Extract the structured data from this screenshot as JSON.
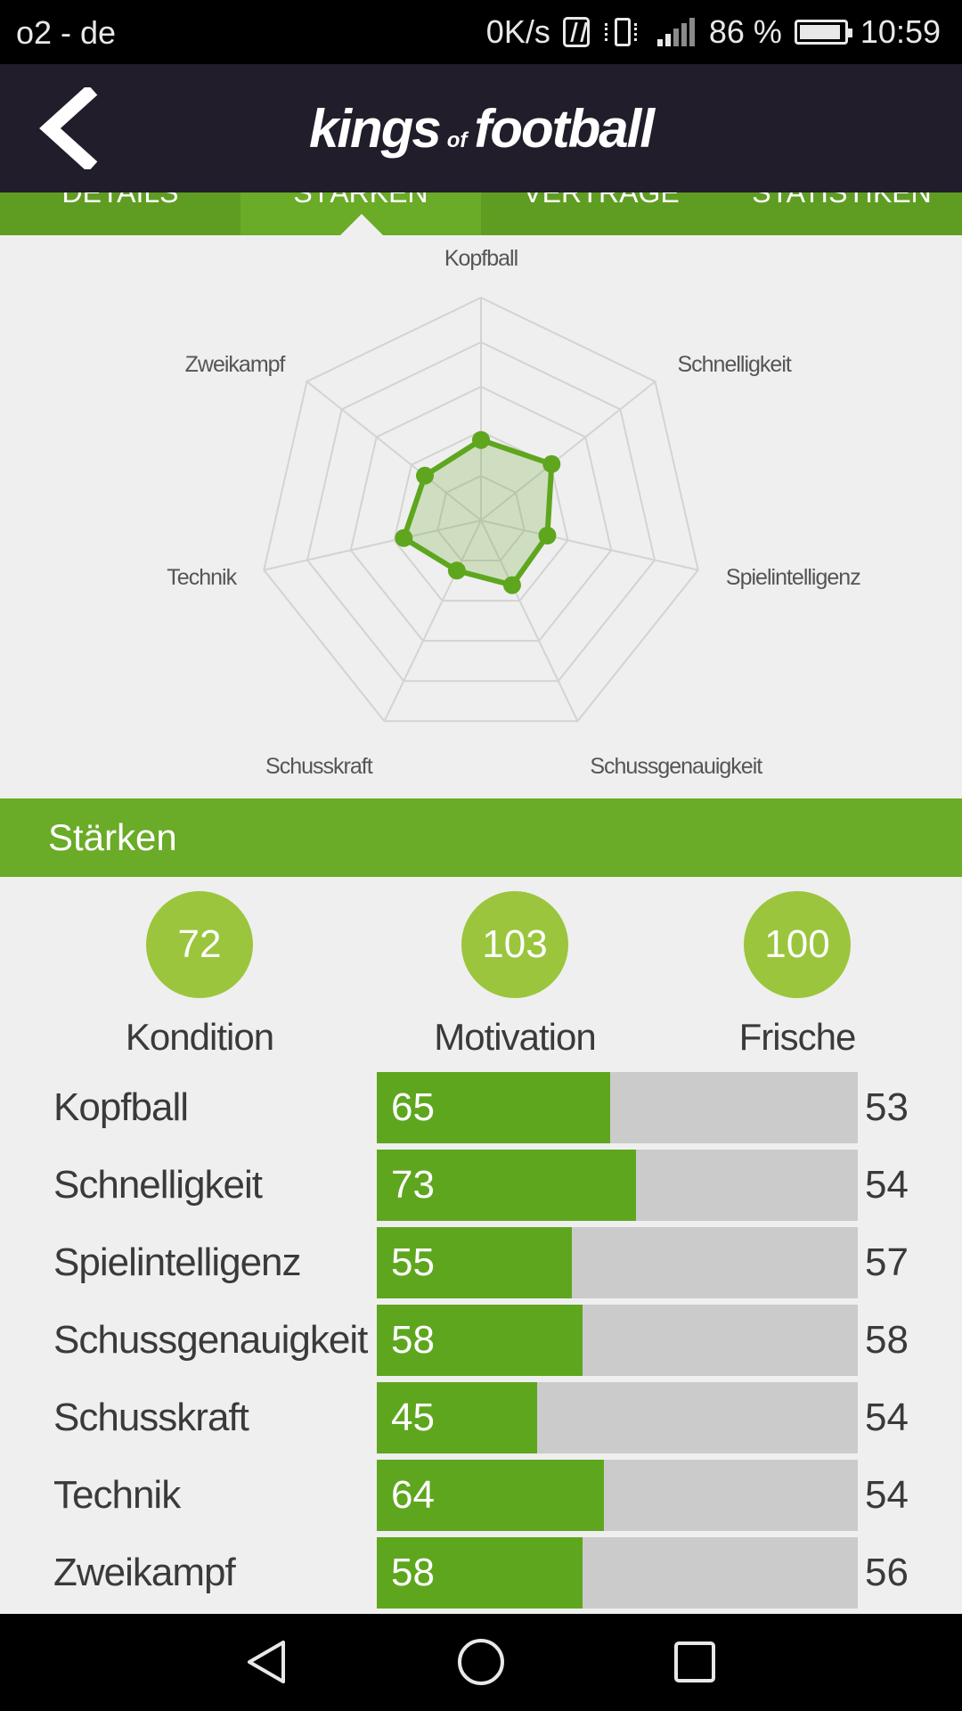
{
  "status_bar": {
    "carrier": "o2 - de",
    "speed": "0K/s",
    "battery": "86 %",
    "time": "10:59"
  },
  "app": {
    "logo_main_left": "kings",
    "logo_of": "of",
    "logo_main_right": "football"
  },
  "tabs": [
    {
      "label": "Details",
      "active": false
    },
    {
      "label": "Stärken",
      "active": true
    },
    {
      "label": "Verträge",
      "active": false
    },
    {
      "label": "Statistiken",
      "active": false
    }
  ],
  "chart_data": {
    "type": "radar",
    "axes": [
      "Kopfball",
      "Schnelligkeit",
      "Spielintelligenz",
      "Schussgenauigkeit",
      "Schusskraft",
      "Technik",
      "Zweikampf"
    ],
    "values": [
      65,
      73,
      55,
      58,
      45,
      64,
      58
    ],
    "range": [
      0,
      180
    ],
    "rings": 5,
    "color": "#5fa61f"
  },
  "section": {
    "title": "Stärken"
  },
  "summary": [
    {
      "value": "72",
      "label": "Kondition"
    },
    {
      "value": "103",
      "label": "Motivation"
    },
    {
      "value": "100",
      "label": "Frische"
    }
  ],
  "attributes": [
    {
      "label": "Kopfball",
      "value": 65,
      "compare": 53,
      "fill": 0.485
    },
    {
      "label": "Schnelligkeit",
      "value": 73,
      "compare": 54,
      "fill": 0.539
    },
    {
      "label": "Spielintelligenz",
      "value": 55,
      "compare": 57,
      "fill": 0.406
    },
    {
      "label": "Schussgenauigkeit",
      "value": 58,
      "compare": 58,
      "fill": 0.428
    },
    {
      "label": "Schusskraft",
      "value": 45,
      "compare": 54,
      "fill": 0.333
    },
    {
      "label": "Technik",
      "value": 64,
      "compare": 54,
      "fill": 0.472
    },
    {
      "label": "Zweikampf",
      "value": 58,
      "compare": 56,
      "fill": 0.428
    }
  ],
  "colors": {
    "header_bg": "#221d2a",
    "accent_green": "#6aab27",
    "bar_green": "#5fa61f",
    "circle_green": "#9bc53d",
    "track_gray": "#cbcbcb"
  }
}
